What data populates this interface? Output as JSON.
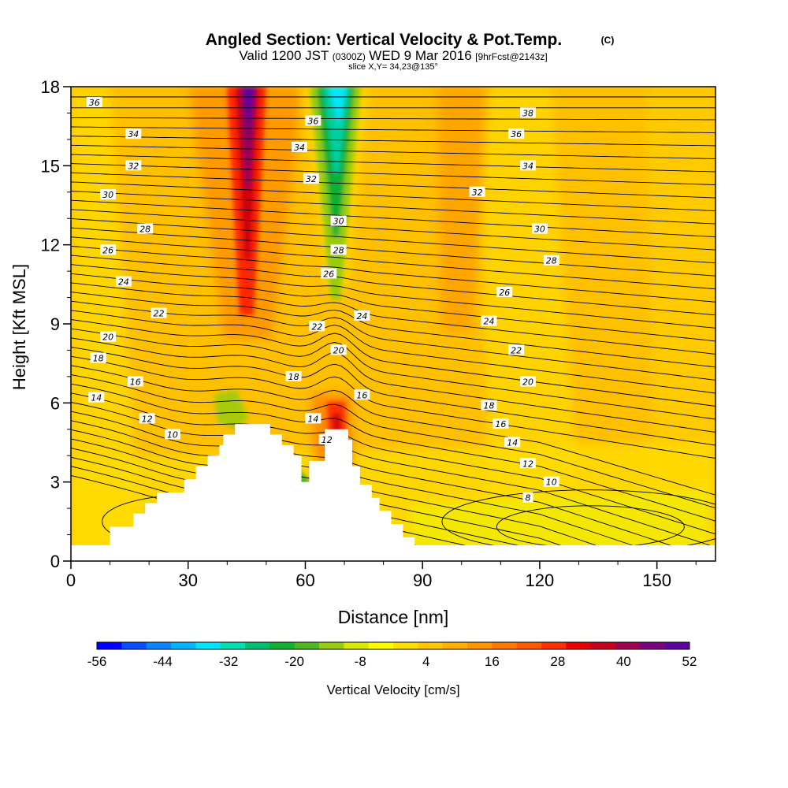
{
  "header": {
    "title": "Angled Section: Vertical Velocity & Pot.Temp.",
    "title_mark": "(C)",
    "valid_prefix": "Valid 1200 JST",
    "valid_utc": "(0300Z)",
    "valid_date": "WED 9 Mar 2016",
    "forecast": "[9hrFcst@2143z]",
    "slice": "slice X,Y= 34,23@135°"
  },
  "chart_data": {
    "type": "heatmap",
    "xlabel": "Distance [nm]",
    "ylabel": "Height [Kft MSL]",
    "xlim": [
      0,
      165
    ],
    "ylim": [
      0,
      18
    ],
    "x_ticks": [
      0,
      30,
      60,
      90,
      120,
      150
    ],
    "y_ticks": [
      0,
      3,
      6,
      9,
      12,
      15,
      18
    ],
    "colorbar": {
      "label": "Vertical Velocity [cm/s]",
      "ticks": [
        -56,
        -44,
        -32,
        -20,
        -8,
        4,
        16,
        28,
        40,
        52
      ],
      "colors": [
        "#0000ff",
        "#0a4cff",
        "#0a84ff",
        "#00b4ff",
        "#00e4ff",
        "#00e0b0",
        "#00c070",
        "#10b030",
        "#50b820",
        "#98cc10",
        "#d8e800",
        "#ffff00",
        "#ffe000",
        "#ffc800",
        "#ffb000",
        "#ff9600",
        "#ff7800",
        "#ff5a00",
        "#ff3000",
        "#e80000",
        "#c80020",
        "#a00050",
        "#7a0080",
        "#5c00a0"
      ]
    },
    "terrain": [
      [
        0,
        0.6
      ],
      [
        10,
        0.6
      ],
      [
        10,
        1.3
      ],
      [
        16,
        1.3
      ],
      [
        16,
        1.8
      ],
      [
        19,
        1.8
      ],
      [
        19,
        2.2
      ],
      [
        22,
        2.2
      ],
      [
        22,
        2.6
      ],
      [
        29,
        2.6
      ],
      [
        29,
        3.1
      ],
      [
        32,
        3.1
      ],
      [
        32,
        3.6
      ],
      [
        35,
        3.6
      ],
      [
        35,
        4.0
      ],
      [
        38,
        4.0
      ],
      [
        38,
        4.4
      ],
      [
        39,
        4.4
      ],
      [
        39,
        4.8
      ],
      [
        42,
        4.8
      ],
      [
        42,
        5.2
      ],
      [
        51,
        5.2
      ],
      [
        51,
        4.8
      ],
      [
        54,
        4.8
      ],
      [
        54,
        4.4
      ],
      [
        57,
        4.4
      ],
      [
        57,
        4.0
      ],
      [
        59,
        4.0
      ],
      [
        59,
        3.0
      ],
      [
        61,
        3.0
      ],
      [
        61,
        3.8
      ],
      [
        65,
        3.8
      ],
      [
        65,
        5.0
      ],
      [
        71,
        5.0
      ],
      [
        71,
        4.6
      ],
      [
        72,
        4.6
      ],
      [
        72,
        3.6
      ],
      [
        74,
        3.6
      ],
      [
        74,
        2.9
      ],
      [
        77,
        2.9
      ],
      [
        77,
        2.4
      ],
      [
        79,
        2.4
      ],
      [
        79,
        1.9
      ],
      [
        82,
        1.9
      ],
      [
        82,
        1.4
      ],
      [
        85,
        1.4
      ],
      [
        85,
        0.9
      ],
      [
        88,
        0.9
      ],
      [
        88,
        0.6
      ],
      [
        165,
        0.6
      ]
    ],
    "isentrope_labels": [
      {
        "v": "36",
        "x": 6,
        "y": 17.4
      },
      {
        "v": "34",
        "x": 16,
        "y": 16.2
      },
      {
        "v": "32",
        "x": 16,
        "y": 15.0
      },
      {
        "v": "30",
        "x": 9.5,
        "y": 13.9
      },
      {
        "v": "28",
        "x": 19,
        "y": 12.6
      },
      {
        "v": "26",
        "x": 9.5,
        "y": 11.8
      },
      {
        "v": "24",
        "x": 13.5,
        "y": 10.6
      },
      {
        "v": "22",
        "x": 22.5,
        "y": 9.4
      },
      {
        "v": "20",
        "x": 9.5,
        "y": 8.5
      },
      {
        "v": "18",
        "x": 7,
        "y": 7.7
      },
      {
        "v": "16",
        "x": 16.5,
        "y": 6.8
      },
      {
        "v": "14",
        "x": 6.5,
        "y": 6.2
      },
      {
        "v": "12",
        "x": 19.5,
        "y": 5.4
      },
      {
        "v": "10",
        "x": 26,
        "y": 4.8
      },
      {
        "v": "36",
        "x": 62,
        "y": 16.7
      },
      {
        "v": "34",
        "x": 58.5,
        "y": 15.7
      },
      {
        "v": "32",
        "x": 61.5,
        "y": 14.5
      },
      {
        "v": "30",
        "x": 68.5,
        "y": 12.9
      },
      {
        "v": "28",
        "x": 68.5,
        "y": 11.8
      },
      {
        "v": "26",
        "x": 66,
        "y": 10.9
      },
      {
        "v": "24",
        "x": 74.5,
        "y": 9.3
      },
      {
        "v": "22",
        "x": 63,
        "y": 8.9
      },
      {
        "v": "20",
        "x": 68.5,
        "y": 8.0
      },
      {
        "v": "18",
        "x": 57,
        "y": 7.0
      },
      {
        "v": "16",
        "x": 74.5,
        "y": 6.3
      },
      {
        "v": "14",
        "x": 62,
        "y": 5.4
      },
      {
        "v": "12",
        "x": 65.5,
        "y": 4.6
      },
      {
        "v": "38",
        "x": 117,
        "y": 17.0
      },
      {
        "v": "36",
        "x": 114,
        "y": 16.2
      },
      {
        "v": "34",
        "x": 117,
        "y": 15.0
      },
      {
        "v": "32",
        "x": 104,
        "y": 14.0
      },
      {
        "v": "30",
        "x": 120,
        "y": 12.6
      },
      {
        "v": "28",
        "x": 123,
        "y": 11.4
      },
      {
        "v": "26",
        "x": 111,
        "y": 10.2
      },
      {
        "v": "24",
        "x": 107,
        "y": 9.1
      },
      {
        "v": "22",
        "x": 114,
        "y": 8.0
      },
      {
        "v": "20",
        "x": 117,
        "y": 6.8
      },
      {
        "v": "18",
        "x": 107,
        "y": 5.9
      },
      {
        "v": "16",
        "x": 110,
        "y": 5.2
      },
      {
        "v": "14",
        "x": 113,
        "y": 4.5
      },
      {
        "v": "12",
        "x": 117,
        "y": 3.7
      },
      {
        "v": "10",
        "x": 123,
        "y": 3.0
      },
      {
        "v": "8",
        "x": 117,
        "y": 2.4
      }
    ]
  }
}
